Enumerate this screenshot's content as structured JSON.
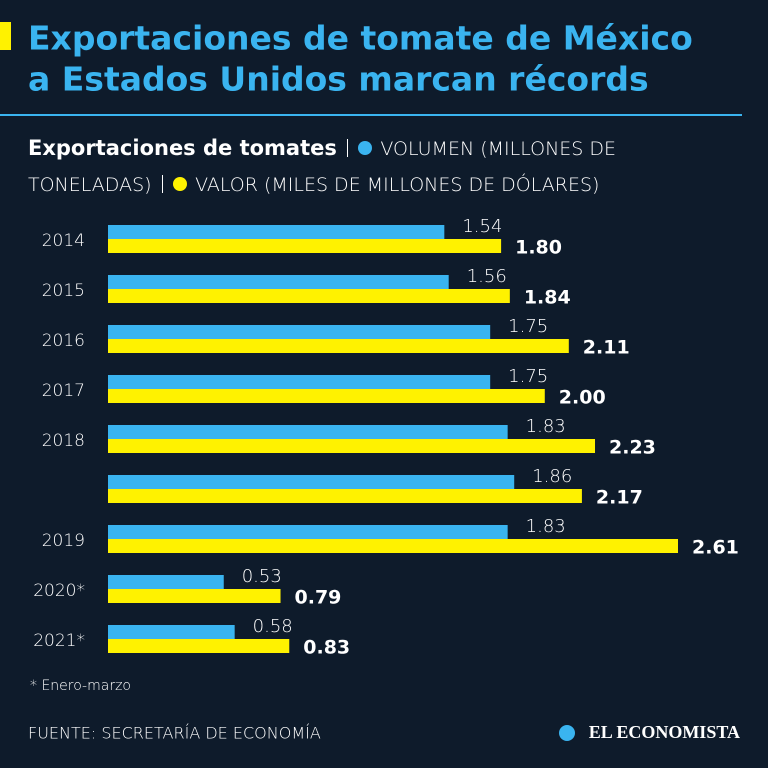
{
  "chart_data": {
    "type": "bar",
    "orientation": "horizontal",
    "title_lines": [
      "Exportaciones de tomate de México",
      "a Estados Unidos marcan récords"
    ],
    "subtitle": "Exportaciones de tomates",
    "categories": [
      "2014",
      "2015",
      "2016",
      "2017",
      "2018",
      null,
      "2019",
      "2020*",
      "2021*"
    ],
    "series": [
      {
        "name": "VOLUMEN (MILLONES DE TONELADAS)",
        "color": "#3ab4f0",
        "values": [
          1.54,
          1.56,
          1.75,
          1.75,
          1.83,
          1.86,
          1.83,
          0.53,
          0.58
        ]
      },
      {
        "name": "VALOR (MILES DE MILLONES DE DÓLARES)",
        "color": "#fff200",
        "values": [
          1.8,
          1.84,
          2.11,
          2.0,
          2.23,
          2.17,
          2.61,
          0.79,
          0.83
        ],
        "value_labels": [
          "1.80",
          "1.84",
          "2.11",
          "2.00",
          "2.23",
          "2.17",
          "2.61",
          "0.79",
          "0.83"
        ]
      }
    ],
    "note": "* Enero-marzo",
    "source": "FUENTE: SECRETARÍA DE ECONOMÍA",
    "logo": "EL ECONOMISTA"
  }
}
